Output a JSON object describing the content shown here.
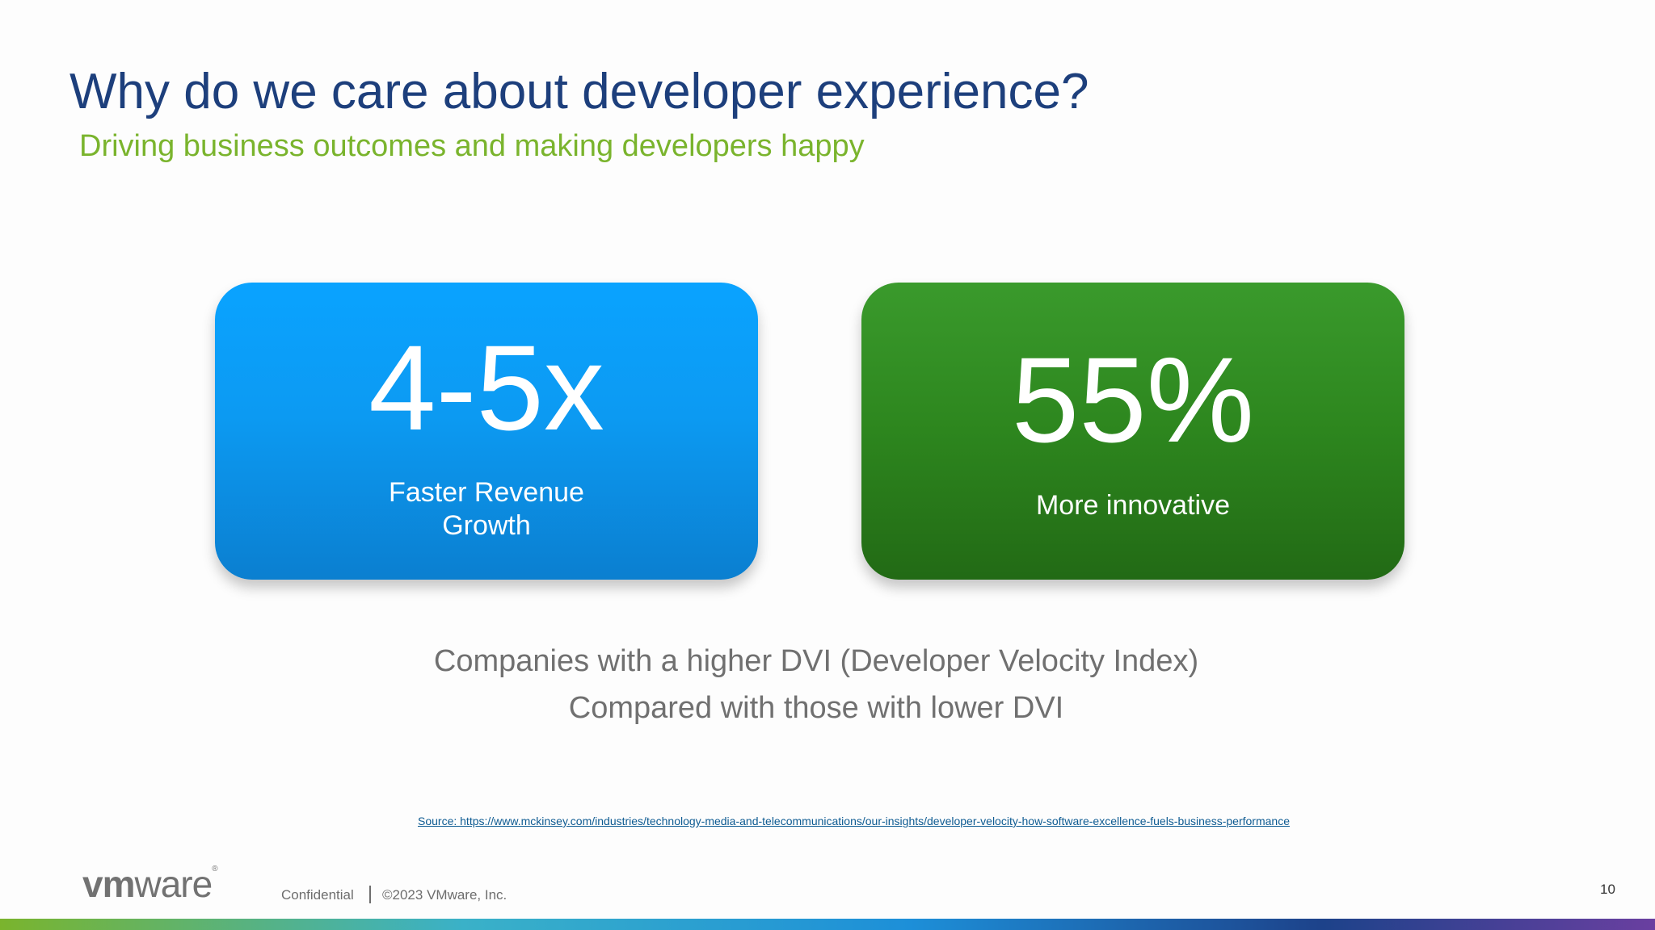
{
  "slide": {
    "title": "Why do we care about developer experience?",
    "subtitle": "Driving business outcomes and making developers happy",
    "cards": [
      {
        "value": "4-5x",
        "label_line1": "Faster Revenue",
        "label_line2": "Growth",
        "color": "#0aa3ff"
      },
      {
        "value": "55%",
        "label": "More innovative",
        "color": "#2d861e"
      }
    ],
    "caption_line1": "Companies with a higher DVI (Developer Velocity Index)",
    "caption_line2": "Compared with those with lower DVI",
    "source": "Source: https://www.mckinsey.com/industries/technology-media-and-telecommunications/our-insights/developer-velocity-how-software-excellence-fuels-business-performance"
  },
  "footer": {
    "logo_vm": "vm",
    "logo_ware": "ware",
    "logo_reg": "®",
    "confidential": "Confidential",
    "copyright": "©2023 VMware, Inc.",
    "page_number": "10"
  },
  "colors": {
    "title": "#1d3f7c",
    "subtitle": "#7ab42d",
    "caption": "#707070"
  }
}
